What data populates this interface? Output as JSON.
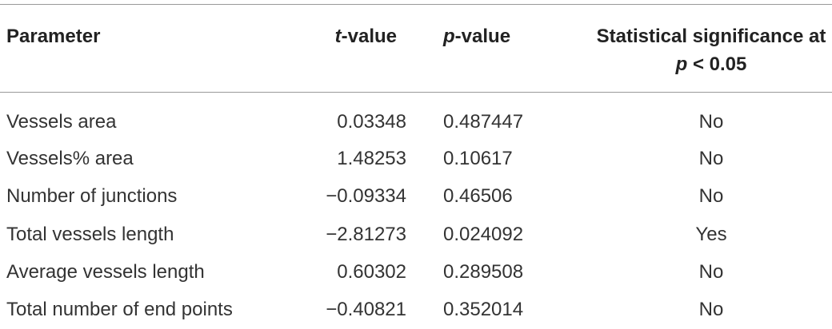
{
  "table": {
    "header": [
      [
        {
          "text": "Parameter"
        }
      ],
      [
        {
          "text": "t",
          "italic": true
        },
        {
          "text": "-value"
        }
      ],
      [
        {
          "text": "p",
          "italic": true
        },
        {
          "text": "-value"
        }
      ],
      [
        {
          "text": "Statistical significance at "
        },
        {
          "text": "p",
          "italic": true
        },
        {
          "text": " < 0.05"
        }
      ]
    ],
    "rows": [
      [
        "Vessels area",
        "0.03348",
        "0.487447",
        "No"
      ],
      [
        "Vessels% area",
        "1.48253",
        "0.10617",
        "No"
      ],
      [
        "Number of junctions",
        "−0.09334",
        "0.46506",
        "No"
      ],
      [
        "Total vessels length",
        "−2.81273",
        "0.024092",
        "Yes"
      ],
      [
        "Average vessels length",
        "0.60302",
        "0.289508",
        "No"
      ],
      [
        "Total number of end points",
        "−0.40821",
        "0.352014",
        "No"
      ]
    ]
  }
}
